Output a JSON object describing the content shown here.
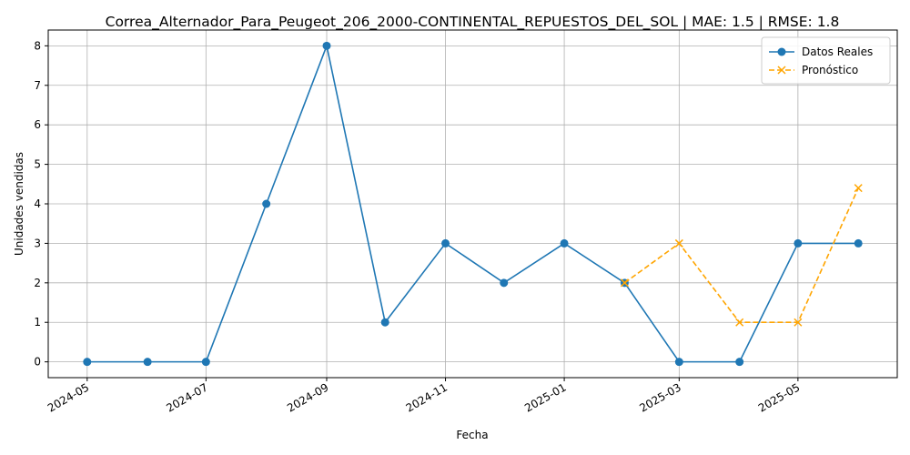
{
  "chart_data": {
    "type": "line",
    "title": "Correa_Alternador_Para_Peugeot_206_2000-CONTINENTAL_REPUESTOS_DEL_SOL | MAE: 1.5 | RMSE: 1.8",
    "xlabel": "Fecha",
    "ylabel": "Unidades vendidas",
    "ylim": [
      -0.4,
      8.4
    ],
    "grid": true,
    "legend_position": "top-right",
    "x_ticks": [
      "2024-05",
      "2024-07",
      "2024-09",
      "2024-11",
      "2025-01",
      "2025-03",
      "2025-05"
    ],
    "y_ticks": [
      0,
      1,
      2,
      3,
      4,
      5,
      6,
      7,
      8
    ],
    "series": [
      {
        "name": "Datos Reales",
        "color": "#1f77b4",
        "marker": "circle",
        "linestyle": "solid",
        "x": [
          "2024-05-01",
          "2024-06-01",
          "2024-07-01",
          "2024-08-01",
          "2024-09-01",
          "2024-10-01",
          "2024-11-01",
          "2024-12-01",
          "2025-01-01",
          "2025-02-01",
          "2025-03-01",
          "2025-04-01",
          "2025-05-01",
          "2025-06-01"
        ],
        "values": [
          0,
          0,
          0,
          4,
          8,
          1,
          3,
          2,
          3,
          2,
          0,
          0,
          3,
          3
        ]
      },
      {
        "name": "Pronóstico",
        "color": "#ffa500",
        "marker": "x",
        "linestyle": "dashed",
        "x": [
          "2025-02-01",
          "2025-03-01",
          "2025-04-01",
          "2025-05-01",
          "2025-06-01"
        ],
        "values": [
          2,
          3,
          1,
          1,
          4.4
        ]
      }
    ]
  }
}
